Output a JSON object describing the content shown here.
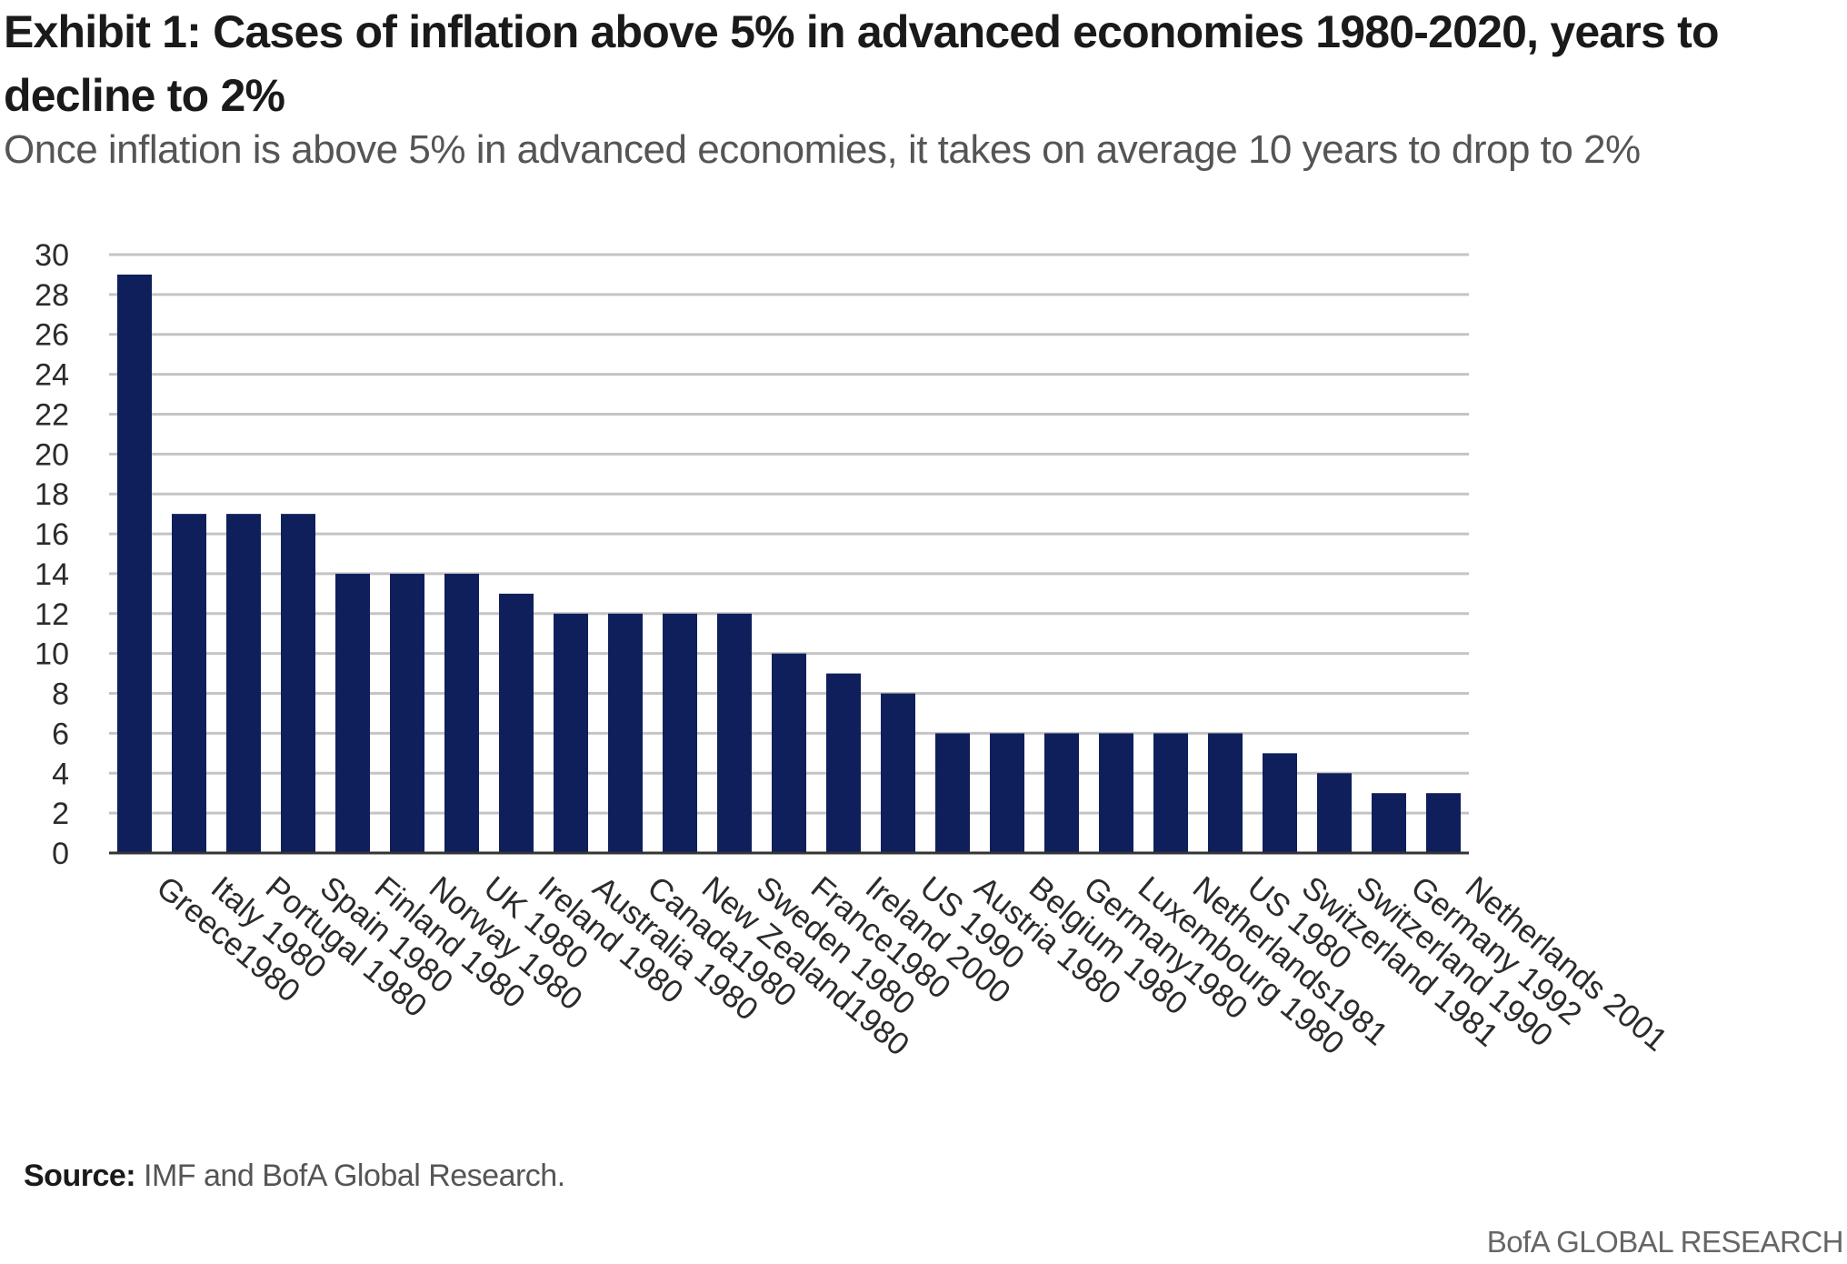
{
  "header": {
    "title": "Exhibit 1: Cases of inflation above 5% in advanced economies 1980-2020, years to decline to 2%",
    "subtitle": "Once inflation is above 5% in advanced economies, it takes on average 10 years to drop to 2%"
  },
  "footer": {
    "source_label": "Source:",
    "source_text": " IMF and BofA Global Research.",
    "brand": "BofA GLOBAL RESEARCH"
  },
  "colors": {
    "bar": "#0e1f5b",
    "grid": "#c4c4c4",
    "axis": "#333333",
    "label": "#2b2b2b"
  },
  "chart_data": {
    "type": "bar",
    "title": "Exhibit 1: Cases of inflation above 5% in advanced economies 1980-2020, years to decline to 2%",
    "xlabel": "",
    "ylabel": "",
    "ylim": [
      0,
      30
    ],
    "ytick_step": 2,
    "grid": true,
    "categories": [
      "Greece1980",
      "Italy 1980",
      "Portugal 1980",
      "Spain 1980",
      "Finland 1980",
      "Norway 1980",
      "UK 1980",
      "Ireland 1980",
      "Australia 1980",
      "Canada1980",
      "New Zealand1980",
      "Sweden 1980",
      "France1980",
      "Ireland 2000",
      "US 1990",
      "Austria 1980",
      "Belgium 1980",
      "Germany1980",
      "Luxembourg 1980",
      "Netherlands1981",
      "US 1980",
      "Switzerland 1981",
      "Switzerland 1990",
      "Germany 1992",
      "Netherlands 2001"
    ],
    "values": [
      29,
      17,
      17,
      17,
      14,
      14,
      14,
      13,
      12,
      12,
      12,
      12,
      10,
      9,
      8,
      6,
      6,
      6,
      6,
      6,
      6,
      5,
      4,
      3,
      3
    ]
  }
}
